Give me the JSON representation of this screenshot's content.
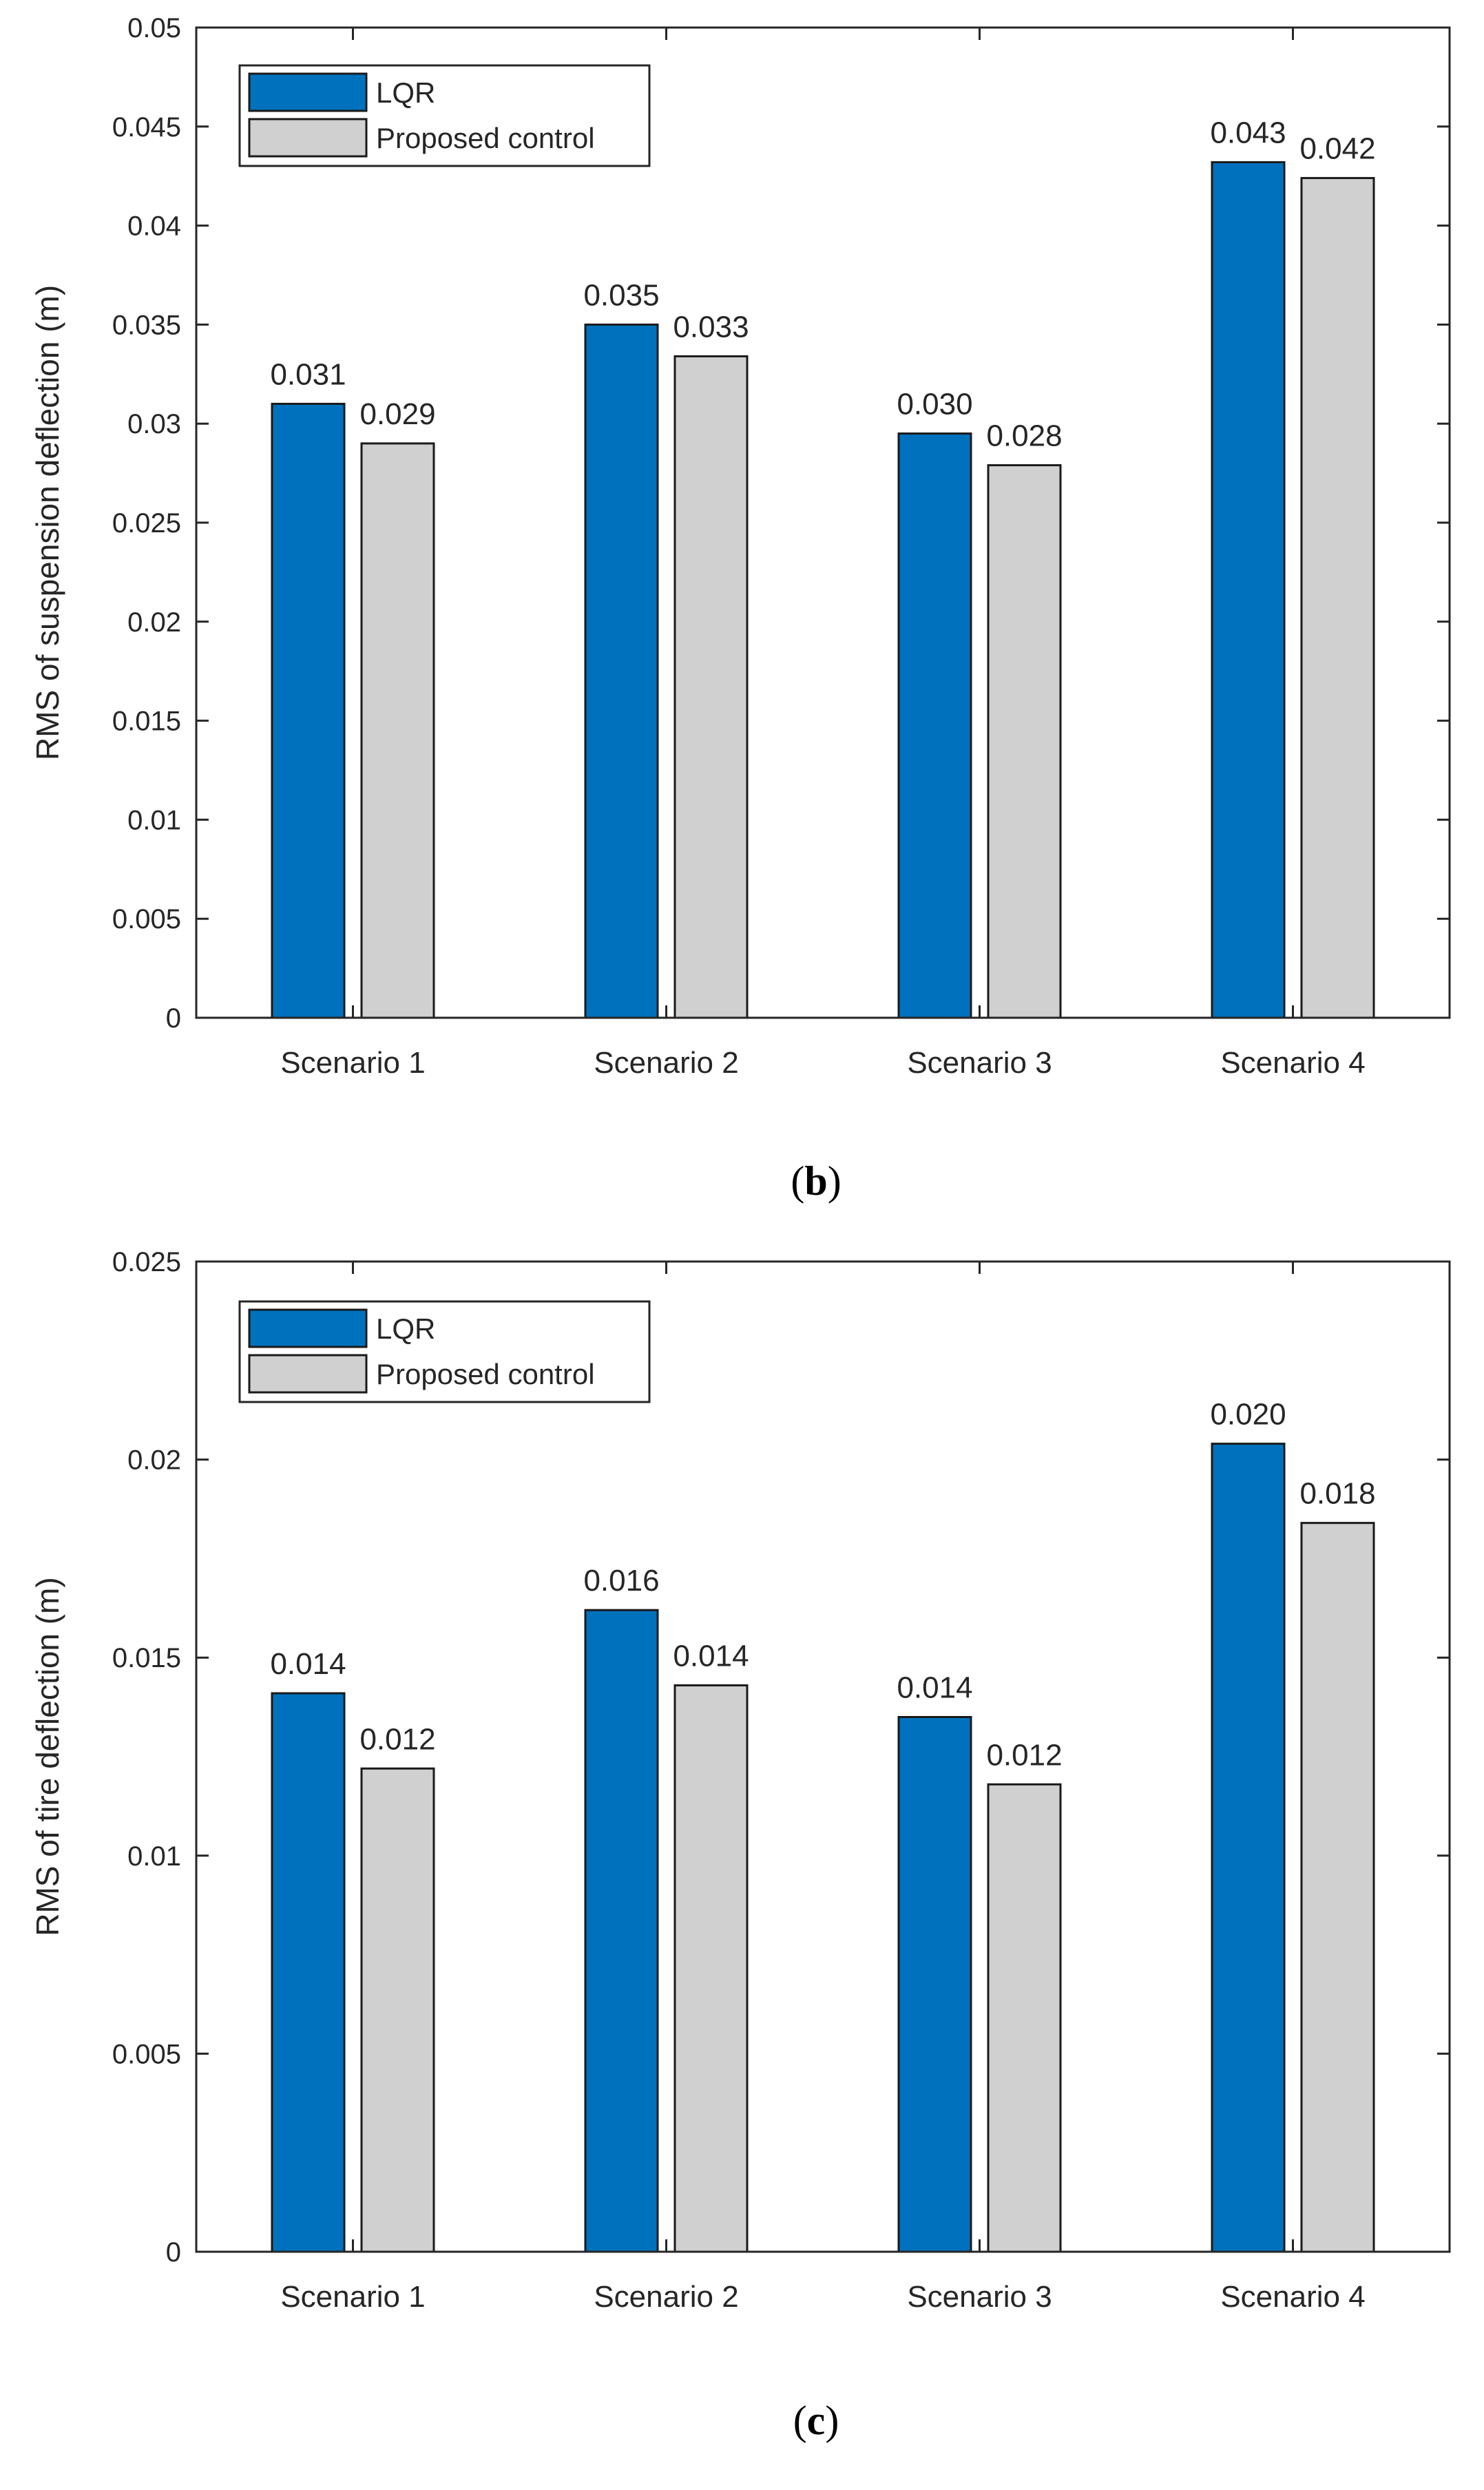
{
  "colors": {
    "lqr": "#0072BD",
    "proposed": "#D0D0D0",
    "edge": "#1a1a1a",
    "axis": "#262626"
  },
  "chart_data": [
    {
      "type": "bar",
      "panel": "(b)",
      "caption_letter": "b",
      "ylabel": "RMS of suspension deflection (m)",
      "xlabel": "",
      "categories": [
        "Scenario 1",
        "Scenario 2",
        "Scenario 3",
        "Scenario 4"
      ],
      "ylim": [
        0,
        0.05
      ],
      "yticks": [
        0,
        0.005,
        0.01,
        0.015,
        0.02,
        0.025,
        0.03,
        0.035,
        0.04,
        0.045,
        0.05
      ],
      "ytick_labels": [
        "0",
        "0.005",
        "0.01",
        "0.015",
        "0.02",
        "0.025",
        "0.03",
        "0.035",
        "0.04",
        "0.045",
        "0.05"
      ],
      "legend_position": "top-left",
      "grid": false,
      "series": [
        {
          "name": "LQR",
          "color_key": "lqr",
          "values": [
            0.031,
            0.035,
            0.0295,
            0.0432
          ],
          "labels": [
            "0.031",
            "0.035",
            "0.030",
            "0.043"
          ]
        },
        {
          "name": "Proposed control",
          "color_key": "proposed",
          "values": [
            0.029,
            0.0334,
            0.0279,
            0.0424
          ],
          "labels": [
            "0.029",
            "0.033",
            "0.028",
            "0.042"
          ]
        }
      ]
    },
    {
      "type": "bar",
      "panel": "(c)",
      "caption_letter": "c",
      "ylabel": "RMS of tire deflection (m)",
      "xlabel": "",
      "categories": [
        "Scenario 1",
        "Scenario 2",
        "Scenario 3",
        "Scenario 4"
      ],
      "ylim": [
        0,
        0.025
      ],
      "yticks": [
        0,
        0.005,
        0.01,
        0.015,
        0.02,
        0.025
      ],
      "ytick_labels": [
        "0",
        "0.005",
        "0.01",
        "0.015",
        "0.02",
        "0.025"
      ],
      "legend_position": "top-left",
      "grid": false,
      "series": [
        {
          "name": "LQR",
          "color_key": "lqr",
          "values": [
            0.0141,
            0.0162,
            0.0135,
            0.0204
          ],
          "labels": [
            "0.014",
            "0.016",
            "0.014",
            "0.020"
          ]
        },
        {
          "name": "Proposed control",
          "color_key": "proposed",
          "values": [
            0.0122,
            0.0143,
            0.0118,
            0.0184
          ],
          "labels": [
            "0.012",
            "0.014",
            "0.012",
            "0.018"
          ]
        }
      ]
    }
  ]
}
